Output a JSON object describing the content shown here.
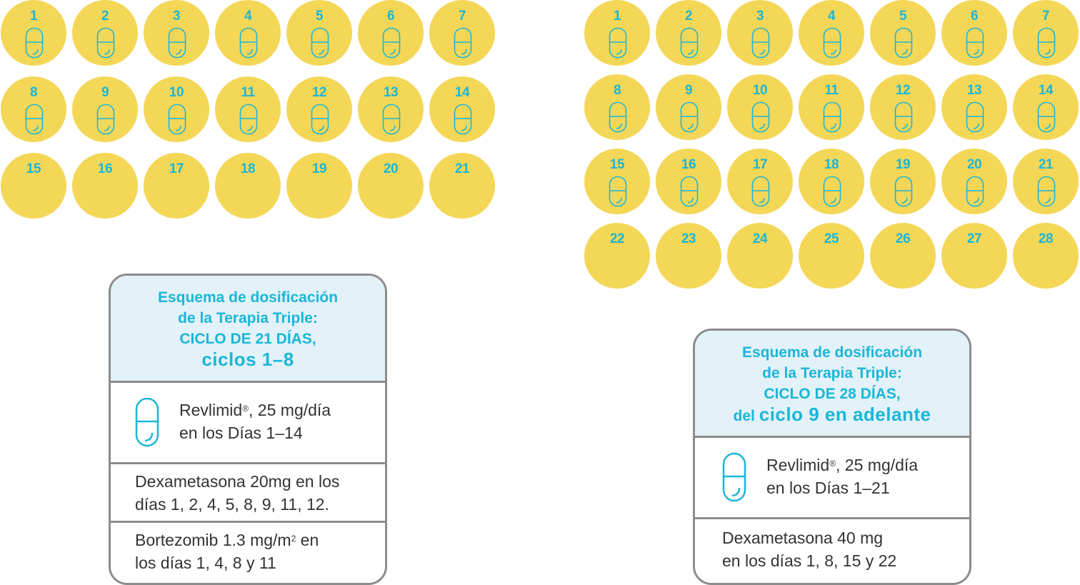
{
  "cycle_21": {
    "days": [
      {
        "n": "1",
        "pill": true
      },
      {
        "n": "2",
        "pill": true
      },
      {
        "n": "3",
        "pill": true
      },
      {
        "n": "4",
        "pill": true
      },
      {
        "n": "5",
        "pill": true
      },
      {
        "n": "6",
        "pill": true
      },
      {
        "n": "7",
        "pill": true
      },
      {
        "n": "8",
        "pill": true
      },
      {
        "n": "9",
        "pill": true
      },
      {
        "n": "10",
        "pill": true
      },
      {
        "n": "11",
        "pill": true
      },
      {
        "n": "12",
        "pill": true
      },
      {
        "n": "13",
        "pill": true
      },
      {
        "n": "14",
        "pill": true
      },
      {
        "n": "15",
        "pill": false
      },
      {
        "n": "16",
        "pill": false
      },
      {
        "n": "17",
        "pill": false
      },
      {
        "n": "18",
        "pill": false
      },
      {
        "n": "19",
        "pill": false
      },
      {
        "n": "20",
        "pill": false
      },
      {
        "n": "21",
        "pill": false
      }
    ],
    "card": {
      "title_line1": "Esquema de dosificación",
      "title_line2": "de la Terapia Triple:",
      "title_line3": "CICLO DE 21 DÍAS,",
      "title_line4": "ciclos 1–8",
      "revlimid_name": "Revlimid",
      "revlimid_reg": "®",
      "revlimid_dose": ", 25 mg/día",
      "revlimid_days": "en los Días 1–14",
      "dexa_line1": "Dexametasona 20mg en los",
      "dexa_line2": "días 1, 2, 4, 5, 8, 9, 11, 12.",
      "bortez_a": "Bortezomib 1.3  mg/m",
      "bortez_sup": "2",
      "bortez_b": " en",
      "bortez_line2": "los días 1, 4, 8 y 11"
    }
  },
  "cycle_28": {
    "days": [
      {
        "n": "1",
        "pill": true
      },
      {
        "n": "2",
        "pill": true
      },
      {
        "n": "3",
        "pill": true
      },
      {
        "n": "4",
        "pill": true
      },
      {
        "n": "5",
        "pill": true
      },
      {
        "n": "6",
        "pill": true
      },
      {
        "n": "7",
        "pill": true
      },
      {
        "n": "8",
        "pill": true
      },
      {
        "n": "9",
        "pill": true
      },
      {
        "n": "10",
        "pill": true
      },
      {
        "n": "11",
        "pill": true
      },
      {
        "n": "12",
        "pill": true
      },
      {
        "n": "13",
        "pill": true
      },
      {
        "n": "14",
        "pill": true
      },
      {
        "n": "15",
        "pill": true
      },
      {
        "n": "16",
        "pill": true
      },
      {
        "n": "17",
        "pill": true
      },
      {
        "n": "18",
        "pill": true
      },
      {
        "n": "19",
        "pill": true
      },
      {
        "n": "20",
        "pill": true
      },
      {
        "n": "21",
        "pill": true
      },
      {
        "n": "22",
        "pill": false
      },
      {
        "n": "23",
        "pill": false
      },
      {
        "n": "24",
        "pill": false
      },
      {
        "n": "25",
        "pill": false
      },
      {
        "n": "26",
        "pill": false
      },
      {
        "n": "27",
        "pill": false
      },
      {
        "n": "28",
        "pill": false
      }
    ],
    "card": {
      "title_line1": "Esquema de dosificación",
      "title_line2": "de la Terapia Triple:",
      "title_line3": "CICLO DE 28 DÍAS,",
      "title_line4_pre": "del ",
      "title_line4_big": "ciclo 9 en adelante",
      "revlimid_name": "Revlimid",
      "revlimid_reg": "®",
      "revlimid_dose": ", 25 mg/día",
      "revlimid_days": "en los Días 1–21",
      "dexa_line1": "Dexametasona 40 mg",
      "dexa_line2": "en los días 1, 8, 15 y 22"
    }
  },
  "colors": {
    "day_circle": "#f4d757",
    "accent": "#1bb6d8",
    "header_bg": "#e2f2f8",
    "border": "#8c8c8c",
    "text": "#333333"
  }
}
